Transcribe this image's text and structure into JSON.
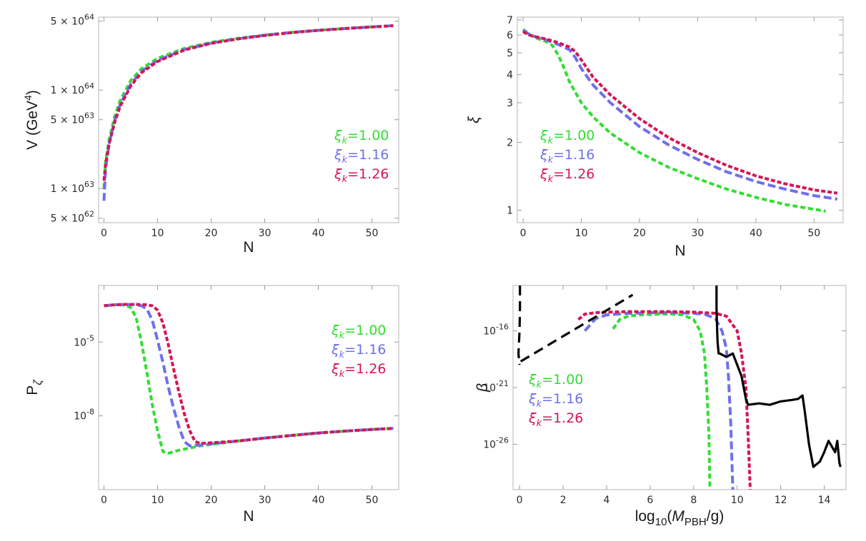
{
  "colors": {
    "green": "#33dd33",
    "blue": "#6f6fee",
    "red": "#d41556",
    "black": "#000000"
  },
  "chart_data": [
    {
      "id": "V",
      "type": "line",
      "yscale": "log",
      "xlabel": "N",
      "ylabel": "V (GeV",
      "ylabel_exp": "4",
      "ylabel_close": ")",
      "xlim": [
        -1,
        55
      ],
      "ylim": [
        4.5e+62,
        5.5e+64
      ],
      "xticks": [
        0,
        10,
        20,
        30,
        40,
        50
      ],
      "yticks": [
        {
          "value": 5e+62,
          "mant": "5",
          "exp": "62"
        },
        {
          "value": 1e+63,
          "mant": "1",
          "exp": "63"
        },
        {
          "value": 5e+63,
          "mant": "5",
          "exp": "63"
        },
        {
          "value": 1e+64,
          "mant": "1",
          "exp": "64"
        },
        {
          "value": 5e+64,
          "mant": "5",
          "exp": "64"
        }
      ],
      "legend_position": "middle-right",
      "series": [
        {
          "name": "ξ_k=1.00",
          "color_key": "green",
          "dash": "7,4",
          "x": [
            0,
            0.3,
            1,
            2,
            3,
            5,
            7,
            10,
            15,
            20,
            25,
            30,
            35,
            40,
            45,
            50,
            54
          ],
          "y": [
            1e+63,
            1.9e+63,
            3.2e+63,
            5.4e+63,
            7.8e+63,
            1.25e+64,
            1.65e+64,
            2.1e+64,
            2.65e+64,
            3.05e+64,
            3.35e+64,
            3.62e+64,
            3.85e+64,
            4.05e+64,
            4.22e+64,
            4.38e+64,
            4.5e+64
          ]
        },
        {
          "name": "ξ_k=1.16",
          "color_key": "blue",
          "dash": "11,5",
          "x": [
            0,
            0.3,
            1,
            2,
            3,
            5,
            7,
            10,
            15,
            20,
            25,
            30,
            35,
            40,
            45,
            50,
            54
          ],
          "y": [
            7.5e+62,
            1.6e+63,
            2.9e+63,
            4.9e+63,
            7.1e+63,
            1.15e+64,
            1.55e+64,
            2e+64,
            2.58e+64,
            3e+64,
            3.32e+64,
            3.6e+64,
            3.84e+64,
            4.04e+64,
            4.21e+64,
            4.37e+64,
            4.5e+64
          ]
        },
        {
          "name": "ξ_k=1.26",
          "color_key": "red",
          "dash": "6,3",
          "x": [
            0,
            0.3,
            1,
            2,
            3,
            5,
            7,
            10,
            15,
            20,
            25,
            30,
            35,
            40,
            45,
            50,
            54
          ],
          "y": [
            1.2e+63,
            1.8e+63,
            2.9e+63,
            4.7e+63,
            6.8e+63,
            1.1e+64,
            1.5e+64,
            1.95e+64,
            2.55e+64,
            2.98e+64,
            3.3e+64,
            3.58e+64,
            3.83e+64,
            4.03e+64,
            4.21e+64,
            4.37e+64,
            4.5e+64
          ]
        }
      ]
    },
    {
      "id": "xi",
      "type": "line",
      "yscale": "log",
      "xlabel": "N",
      "ylabel": "ξ",
      "xlim": [
        -1,
        55
      ],
      "ylim": [
        0.88,
        7.2
      ],
      "xticks": [
        0,
        10,
        20,
        30,
        40,
        50
      ],
      "yticks": [
        {
          "value": 1,
          "label": "1"
        },
        {
          "value": 2,
          "label": "2"
        },
        {
          "value": 3,
          "label": "3"
        },
        {
          "value": 4,
          "label": "4"
        },
        {
          "value": 5,
          "label": "5"
        },
        {
          "value": 6,
          "label": "6"
        },
        {
          "value": 7,
          "label": "7"
        }
      ],
      "legend_position": "middle-left",
      "series": [
        {
          "name": "ξ_k=1.00",
          "color_key": "green",
          "dash": "7,4",
          "x": [
            0,
            1,
            2,
            4,
            5,
            6,
            7,
            8,
            10,
            12,
            15,
            20,
            25,
            30,
            35,
            40,
            45,
            52
          ],
          "y": [
            6.35,
            6.05,
            5.85,
            5.6,
            5.4,
            4.9,
            4.3,
            3.7,
            3.0,
            2.6,
            2.2,
            1.8,
            1.55,
            1.38,
            1.24,
            1.14,
            1.06,
            0.99
          ]
        },
        {
          "name": "ξ_k=1.16",
          "color_key": "blue",
          "dash": "11,5",
          "x": [
            0,
            1,
            2,
            4,
            6,
            8,
            9,
            10,
            12,
            15,
            20,
            25,
            30,
            35,
            40,
            45,
            50,
            54
          ],
          "y": [
            6.3,
            6.05,
            5.9,
            5.7,
            5.45,
            5.15,
            4.75,
            4.25,
            3.6,
            3.0,
            2.35,
            1.95,
            1.68,
            1.48,
            1.34,
            1.24,
            1.16,
            1.12
          ]
        },
        {
          "name": "ξ_k=1.26",
          "color_key": "red",
          "dash": "6,3",
          "x": [
            0,
            1,
            2,
            4,
            6,
            8,
            9,
            10,
            12,
            15,
            20,
            25,
            30,
            35,
            40,
            45,
            50,
            54
          ],
          "y": [
            6.2,
            6.0,
            5.9,
            5.75,
            5.55,
            5.3,
            5.05,
            4.65,
            3.9,
            3.25,
            2.55,
            2.1,
            1.8,
            1.58,
            1.42,
            1.31,
            1.23,
            1.19
          ]
        }
      ]
    },
    {
      "id": "P",
      "type": "line",
      "yscale": "log",
      "xlabel": "N",
      "ylabel": "P",
      "ylabel_sub": "ζ",
      "xlim": [
        -1,
        55
      ],
      "ylim": [
        1e-11,
        0.002
      ],
      "xticks": [
        0,
        10,
        20,
        30,
        40,
        50
      ],
      "yticks": [
        {
          "value": 1e-05,
          "mant": "10",
          "exp": "-5"
        },
        {
          "value": 1e-08,
          "mant": "10",
          "exp": "-8"
        }
      ],
      "legend_position": "top-right",
      "series": [
        {
          "name": "ξ_k=1.00",
          "color_key": "green",
          "dash": "7,4",
          "x": [
            0,
            2,
            4,
            5,
            6,
            7,
            8,
            9,
            10,
            11,
            12,
            14,
            18,
            25,
            30,
            35,
            40,
            45,
            50,
            54
          ],
          "y": [
            0.0003,
            0.00033,
            0.00032,
            0.00025,
            0.0001,
            1e-05,
            6e-07,
            3e-08,
            2.5e-09,
            3.5e-10,
            3e-10,
            4e-10,
            6e-10,
            9.5e-10,
            1.25e-09,
            1.6e-09,
            2e-09,
            2.4e-09,
            2.8e-09,
            3.1e-09
          ]
        },
        {
          "name": "ξ_k=1.16",
          "color_key": "blue",
          "dash": "11,5",
          "x": [
            0,
            2,
            4,
            6,
            7,
            8,
            9,
            10,
            11,
            12,
            13,
            14,
            15,
            16,
            18,
            25,
            30,
            35,
            40,
            45,
            50,
            54
          ],
          "y": [
            0.0003,
            0.00033,
            0.00034,
            0.00033,
            0.0003,
            0.00022,
            8e-05,
            1.2e-05,
            1.5e-06,
            1.5e-07,
            2e-08,
            3.5e-09,
            9e-10,
            6e-10,
            6.5e-10,
            9.5e-10,
            1.25e-09,
            1.6e-09,
            2e-09,
            2.4e-09,
            2.8e-09,
            3.1e-09
          ]
        },
        {
          "name": "ξ_k=1.26",
          "color_key": "red",
          "dash": "6,3",
          "x": [
            0,
            2,
            4,
            6,
            8,
            9,
            10,
            11,
            12,
            13,
            14,
            15,
            16,
            17,
            18,
            25,
            30,
            35,
            40,
            45,
            50,
            54
          ],
          "y": [
            0.0003,
            0.00033,
            0.00034,
            0.00034,
            0.00033,
            0.0003,
            0.0002,
            6e-05,
            8e-06,
            8e-07,
            9e-08,
            1.2e-08,
            2.5e-09,
            9e-10,
            7.5e-10,
            9.5e-10,
            1.25e-09,
            1.6e-09,
            2e-09,
            2.4e-09,
            2.8e-09,
            3.1e-09
          ]
        }
      ]
    },
    {
      "id": "beta",
      "type": "line",
      "yscale": "log",
      "xlabel": "log",
      "xlabel_sub": "10",
      "xlabel_open": "(",
      "xlabel_var": "M",
      "xlabel_var_sub": "PBH",
      "xlabel_tail": "/g)",
      "ylabel": "β",
      "xlim": [
        -0.3,
        15
      ],
      "ylim": [
        1e-30,
        1e-12
      ],
      "xticks": [
        0,
        2,
        4,
        6,
        8,
        10,
        12,
        14
      ],
      "yticks": [
        {
          "value": 1e-16,
          "mant": "10",
          "exp": "-16"
        },
        {
          "value": 1e-21,
          "mant": "10",
          "exp": "-21"
        },
        {
          "value": 1e-26,
          "mant": "10",
          "exp": "-26"
        }
      ],
      "legend_position": "middle-left",
      "series": [
        {
          "name": "ξ_k=1.00",
          "color_key": "green",
          "dash": "7,4",
          "x": [
            4.3,
            4.6,
            5.0,
            5.5,
            6.0,
            6.5,
            7.0,
            7.5,
            8.0,
            8.3,
            8.5,
            8.6,
            8.7,
            8.75
          ],
          "y": [
            1.5e-16,
            1e-15,
            2e-15,
            2.5e-15,
            2.8e-15,
            3e-15,
            3e-15,
            2.5e-15,
            1e-15,
            1e-16,
            1e-18,
            1e-21,
            1e-25,
            1e-30
          ]
        },
        {
          "name": "ξ_k=1.16",
          "color_key": "blue",
          "dash": "11,5",
          "x": [
            3.0,
            3.5,
            4.0,
            5.0,
            6.0,
            7.0,
            8.0,
            8.5,
            9.0,
            9.3,
            9.5,
            9.6,
            9.7,
            9.8
          ],
          "y": [
            1e-16,
            1.2e-15,
            2.5e-15,
            3.5e-15,
            4e-15,
            4e-15,
            3.5e-15,
            3e-15,
            1.2e-15,
            1e-16,
            3e-18,
            1e-20,
            1e-24,
            1e-30
          ]
        },
        {
          "name": "ξ_k=1.26",
          "color_key": "red",
          "dash": "6,3",
          "x": [
            2.7,
            3.0,
            3.5,
            4.0,
            5.0,
            6.0,
            7.0,
            8.0,
            9.0,
            9.5,
            10.0,
            10.2,
            10.4,
            10.5,
            10.6
          ],
          "y": [
            1e-15,
            3e-15,
            4e-15,
            4.5e-15,
            5e-15,
            5e-15,
            5e-15,
            4.5e-15,
            3.5e-15,
            2e-15,
            1e-16,
            1e-18,
            1e-21,
            1e-25,
            1e-30
          ]
        },
        {
          "name": "constraint-left",
          "color_key": "black",
          "dash": "14,8",
          "x": [
            0.02,
            0.02,
            0.0,
            -0.05,
            0.0
          ],
          "y": [
            1e-12,
            1e-14,
            1e-16,
            1e-18,
            1e-19
          ]
        },
        {
          "name": "constraint-slope",
          "color_key": "black",
          "dash": "14,8",
          "x": [
            0.05,
            5.2
          ],
          "y": [
            2e-19,
            1.5e-13
          ]
        },
        {
          "name": "constraint-right",
          "color_key": "black",
          "dash": "",
          "x": [
            9.05,
            9.05,
            9.08,
            9.1,
            9.15,
            9.2,
            9.5,
            9.8,
            10.0,
            10.2,
            10.3,
            10.4,
            10.5,
            11.0,
            11.5,
            12.0,
            12.5,
            12.8,
            13.0,
            13.1,
            13.3,
            13.5,
            13.8,
            14.0,
            14.2,
            14.5,
            14.6,
            14.7,
            14.75
          ],
          "y": [
            1e-12,
            1e-14,
            1e-16,
            1e-17,
            1e-18,
            1e-18,
            5e-19,
            1e-18,
            1e-19,
            1e-20,
            1e-21,
            1e-22,
            3e-23,
            4e-23,
            3e-23,
            6e-23,
            8e-23,
            1e-22,
            2e-22,
            1e-23,
            1e-26,
            1e-28,
            3e-28,
            2e-27,
            2e-26,
            2e-27,
            2e-26,
            2e-28,
            1e-28
          ]
        }
      ]
    }
  ],
  "legend": {
    "items": [
      {
        "sym": "ξ",
        "sub": "k",
        "rest": "=1.00",
        "color_key": "green"
      },
      {
        "sym": "ξ",
        "sub": "k",
        "rest": "=1.16",
        "color_key": "blue"
      },
      {
        "sym": "ξ",
        "sub": "k",
        "rest": "=1.26",
        "color_key": "red"
      }
    ]
  }
}
